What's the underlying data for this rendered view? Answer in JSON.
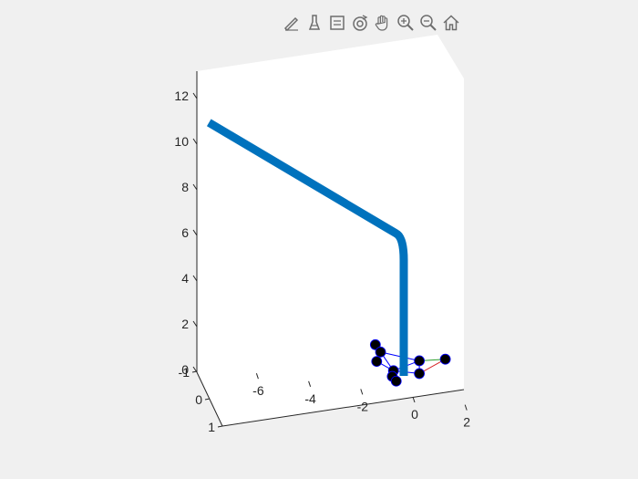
{
  "toolbar": {
    "buttons": [
      {
        "name": "edit-plot-icon"
      },
      {
        "name": "brush-icon"
      },
      {
        "name": "data-tips-icon"
      },
      {
        "name": "rotate-3d-icon"
      },
      {
        "name": "pan-icon"
      },
      {
        "name": "zoom-in-icon"
      },
      {
        "name": "zoom-out-icon"
      },
      {
        "name": "home-icon"
      }
    ]
  },
  "chart_data": {
    "type": "line3d",
    "title": "",
    "xlabel": "",
    "ylabel": "",
    "zlabel": "",
    "x_ticks": [
      "-6",
      "-4",
      "-2",
      "0",
      "2"
    ],
    "y_ticks": [
      "-1",
      "0",
      "1"
    ],
    "z_ticks": [
      "0",
      "2",
      "4",
      "6",
      "8",
      "10",
      "12"
    ],
    "xlim": [
      -7,
      2
    ],
    "ylim": [
      -1,
      1
    ],
    "zlim": [
      0,
      13
    ],
    "series": [
      {
        "color": "#0072bd",
        "linewidth": "thick",
        "points": [
          [
            0,
            0,
            0
          ],
          [
            0,
            0,
            5
          ],
          [
            -0.3,
            0,
            6.2
          ],
          [
            -7.5,
            0,
            12.2
          ]
        ]
      }
    ],
    "markers": [
      {
        "x": -0.9,
        "y": 0.4,
        "z": 1.05,
        "color": "#000000"
      },
      {
        "x": -0.7,
        "y": 0.4,
        "z": 0.7,
        "color": "#000000"
      },
      {
        "x": -0.8,
        "y": 0.5,
        "z": 0.2,
        "color": "#000000"
      },
      {
        "x": -0.3,
        "y": 0.2,
        "z": 0.05,
        "color": "#000000"
      },
      {
        "x": -0.2,
        "y": 0.5,
        "z": -0.55,
        "color": "#000000"
      },
      {
        "x": 0,
        "y": 0.6,
        "z": -0.9,
        "color": "#000000"
      },
      {
        "x": 0.6,
        "y": 0,
        "z": 0.55,
        "color": "#000000"
      },
      {
        "x": 0.6,
        "y": 0,
        "z": 0,
        "color": "#000000"
      },
      {
        "x": 1.6,
        "y": 0,
        "z": 0.45,
        "color": "#000000"
      }
    ],
    "grid": false,
    "legend": "none"
  }
}
